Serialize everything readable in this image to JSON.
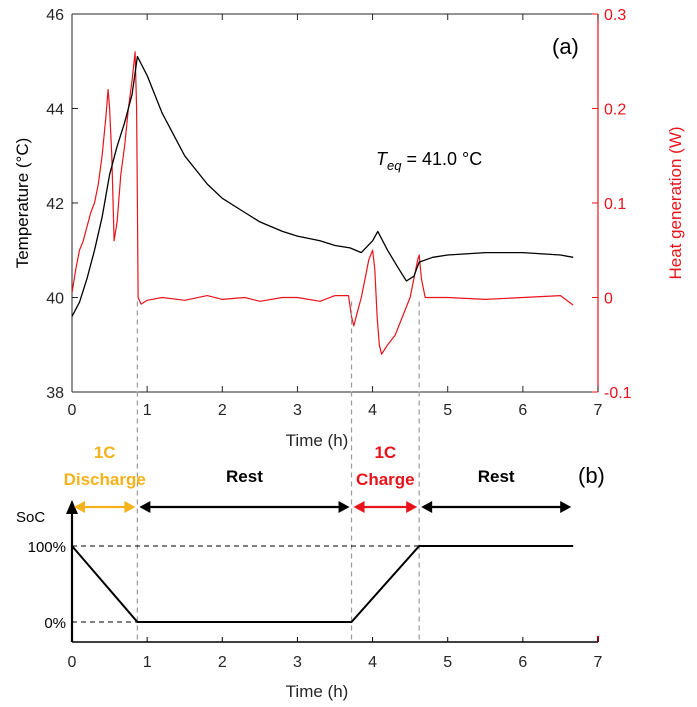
{
  "chart_data": [
    {
      "type": "line",
      "panel_label": "(a)",
      "xlabel": "Time (h)",
      "ylabel": "Temperature (°C)",
      "ylabel_right": "Heat generation (W)",
      "xlim": [
        0,
        7
      ],
      "ylim": [
        38,
        46
      ],
      "ylim_right": [
        -0.1,
        0.3
      ],
      "xticks": [
        "0",
        "1",
        "2",
        "3",
        "4",
        "5",
        "6",
        "7"
      ],
      "yticks": [
        "38",
        "40",
        "42",
        "44",
        "46"
      ],
      "yticks_right": [
        "-0.1",
        "0",
        "0.1",
        "0.2",
        "0.3"
      ],
      "annotation": {
        "base": "T",
        "subscript": "eq",
        "value": " = 41.0 °C"
      },
      "colors": {
        "temperature": "#000000",
        "heat": "#e8131b"
      },
      "vertical_markers_h": [
        0.87,
        3.72,
        4.62
      ],
      "series": [
        {
          "axis": "left",
          "color": "#000000",
          "x": [
            0,
            0.1,
            0.2,
            0.3,
            0.4,
            0.5,
            0.6,
            0.7,
            0.8,
            0.87,
            1.0,
            1.2,
            1.5,
            1.8,
            2.0,
            2.3,
            2.5,
            2.8,
            3.0,
            3.3,
            3.5,
            3.7,
            3.85,
            4.0,
            4.07,
            4.2,
            4.35,
            4.45,
            4.55,
            4.62,
            4.8,
            5.0,
            5.5,
            6.0,
            6.5,
            6.67
          ],
          "y": [
            39.6,
            39.9,
            40.4,
            41.0,
            41.7,
            42.6,
            43.2,
            43.7,
            44.3,
            45.1,
            44.7,
            43.9,
            43.0,
            42.4,
            42.1,
            41.8,
            41.6,
            41.4,
            41.3,
            41.2,
            41.1,
            41.05,
            40.95,
            41.2,
            41.4,
            41.0,
            40.6,
            40.35,
            40.45,
            40.75,
            40.85,
            40.9,
            40.95,
            40.95,
            40.9,
            40.85
          ]
        },
        {
          "axis": "right",
          "color": "#e8131b",
          "x": [
            0,
            0.05,
            0.1,
            0.15,
            0.2,
            0.25,
            0.3,
            0.35,
            0.4,
            0.45,
            0.48,
            0.5,
            0.53,
            0.56,
            0.6,
            0.65,
            0.7,
            0.75,
            0.8,
            0.84,
            0.86,
            0.87,
            0.88,
            0.92,
            1.0,
            1.2,
            1.5,
            1.8,
            2.0,
            2.3,
            2.5,
            2.8,
            3.0,
            3.3,
            3.5,
            3.68,
            3.72,
            3.75,
            3.8,
            3.85,
            3.9,
            3.95,
            4.0,
            4.03,
            4.06,
            4.09,
            4.12,
            4.16,
            4.2,
            4.3,
            4.4,
            4.5,
            4.55,
            4.6,
            4.62,
            4.65,
            4.7,
            5.0,
            5.5,
            6.0,
            6.5,
            6.67
          ],
          "y": [
            0.005,
            0.03,
            0.05,
            0.06,
            0.075,
            0.09,
            0.1,
            0.12,
            0.15,
            0.19,
            0.22,
            0.2,
            0.15,
            0.06,
            0.08,
            0.13,
            0.16,
            0.2,
            0.23,
            0.26,
            0.2,
            0.1,
            0.0,
            -0.007,
            -0.003,
            0.0,
            -0.003,
            0.002,
            -0.002,
            0.0,
            -0.004,
            0.0,
            0.0,
            -0.004,
            0.002,
            0.002,
            -0.02,
            -0.03,
            -0.015,
            0.0,
            0.02,
            0.04,
            0.05,
            0.03,
            -0.02,
            -0.05,
            -0.06,
            -0.055,
            -0.05,
            -0.04,
            -0.02,
            0.0,
            0.02,
            0.04,
            0.045,
            0.02,
            0.0,
            0.0,
            -0.002,
            0.0,
            0.002,
            -0.008
          ]
        }
      ]
    },
    {
      "type": "line",
      "panel_label": "(b)",
      "xlabel": "Time (h)",
      "ylabel": "SoC",
      "xlim": [
        0,
        7
      ],
      "ylim": [
        0,
        100
      ],
      "xticks": [
        "0",
        "1",
        "2",
        "3",
        "4",
        "5",
        "6",
        "7"
      ],
      "yticks": [
        "0%",
        "100%"
      ],
      "series": [
        {
          "color": "#000000",
          "x": [
            0,
            0.87,
            3.72,
            4.62,
            6.67
          ],
          "y": [
            100,
            0,
            0,
            100,
            100
          ]
        }
      ],
      "phases": [
        {
          "title": "1C",
          "label": "Discharge",
          "start": 0,
          "end": 0.87,
          "color": "#f5b31b"
        },
        {
          "title": "",
          "label": "Rest",
          "start": 0.87,
          "end": 3.72,
          "color": "#000000"
        },
        {
          "title": "1C",
          "label": "Charge",
          "start": 3.72,
          "end": 4.62,
          "color": "#e8131b"
        },
        {
          "title": "",
          "label": "Rest",
          "start": 4.62,
          "end": 6.67,
          "color": "#000000"
        }
      ]
    }
  ]
}
